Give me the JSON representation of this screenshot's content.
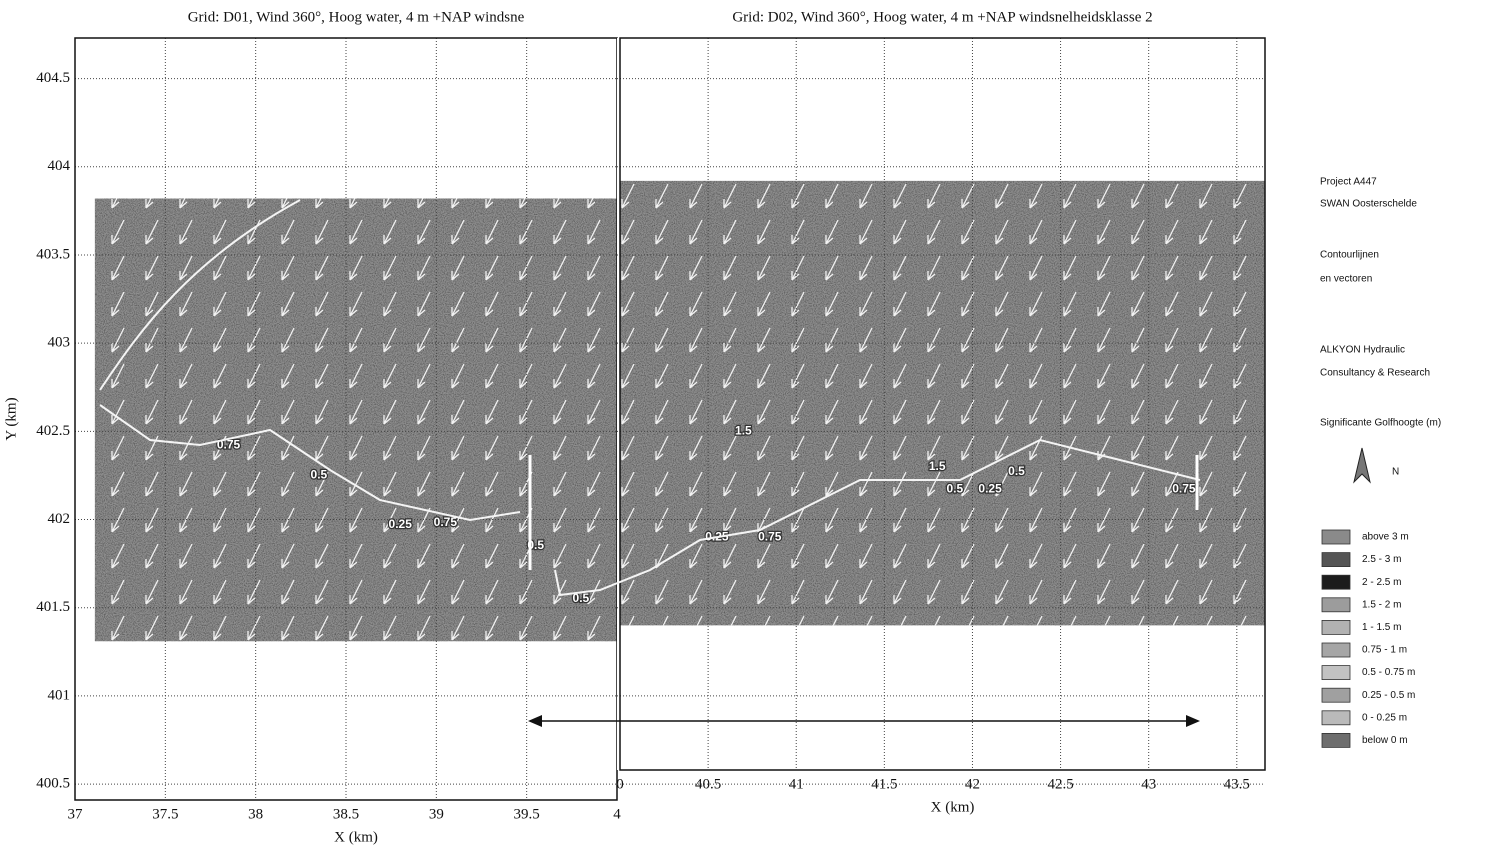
{
  "chart_data": [
    {
      "type": "map",
      "title": "Grid: D01, Wind 360°, Hoog water, 4 m +NAP windsne",
      "x_label": "X (km)",
      "y_label": "Y (km)",
      "xlim": [
        37,
        40
      ],
      "ylim": [
        400.41,
        404.73
      ],
      "xticks": [
        37,
        37.5,
        38,
        38.5,
        39,
        39.5,
        {
          "value": 40,
          "label": "4"
        }
      ],
      "yticks": [
        400.5,
        401,
        401.5,
        402,
        402.5,
        403,
        403.5,
        404,
        404.5
      ],
      "show_ytick_labels": true,
      "grid": true,
      "domain": {
        "x": [
          37.11,
          40
        ],
        "y": [
          401.31,
          403.82
        ],
        "color": "#8e8e8e"
      },
      "annotations": [
        {
          "text": "0.75",
          "x": 37.85,
          "y": 402.42
        },
        {
          "text": "0.5",
          "x": 38.35,
          "y": 402.25
        },
        {
          "text": "0.25",
          "x": 38.8,
          "y": 401.97
        },
        {
          "text": "0.75",
          "x": 39.05,
          "y": 401.98
        },
        {
          "text": "0.5",
          "x": 39.55,
          "y": 401.85
        },
        {
          "text": "0.5",
          "x": 39.8,
          "y": 401.55
        }
      ]
    },
    {
      "type": "map",
      "title": "Grid: D02, Wind 360°, Hoog water, 4 m +NAP windsnelheidsklasse 2",
      "x_label": "X (km)",
      "xlim": [
        40,
        43.66
      ],
      "ylim": [
        400.58,
        404.73
      ],
      "xticks": [
        {
          "value": 40,
          "label": "0"
        },
        40.5,
        41,
        41.5,
        42,
        42.5,
        43,
        43.5
      ],
      "yticks": [
        400.5,
        401,
        401.5,
        402,
        402.5,
        403,
        403.5,
        404,
        404.5
      ],
      "show_ytick_labels": false,
      "grid": true,
      "domain": {
        "x": [
          40,
          43.66
        ],
        "y": [
          401.4,
          403.92
        ],
        "color": "#8e8e8e"
      },
      "annotations": [
        {
          "text": "0.25",
          "x": 40.55,
          "y": 401.9
        },
        {
          "text": "0.75",
          "x": 40.85,
          "y": 401.9
        },
        {
          "text": "1.5",
          "x": 40.7,
          "y": 402.5
        },
        {
          "text": "1.5",
          "x": 41.8,
          "y": 402.3
        },
        {
          "text": "0.5",
          "x": 41.9,
          "y": 402.17
        },
        {
          "text": "0.25",
          "x": 42.1,
          "y": 402.17
        },
        {
          "text": "0.5",
          "x": 42.25,
          "y": 402.27
        },
        {
          "text": "0.75",
          "x": 43.2,
          "y": 402.17
        }
      ]
    }
  ],
  "legend": {
    "notes": [
      "Project A447",
      "SWAN Oosterschelde",
      "Contourlijnen",
      "en vectoren",
      "ALKYON Hydraulic",
      "Consultancy & Research"
    ],
    "title": "Significante Golfhoogte (m)",
    "north": "N",
    "items": [
      {
        "label": "above 3 m",
        "color": "#8a8a8a"
      },
      {
        "label": "2.5 - 3 m",
        "color": "#555555"
      },
      {
        "label": "2 - 2.5 m",
        "color": "#1c1c1c"
      },
      {
        "label": "1.5 - 2 m",
        "color": "#9c9c9c"
      },
      {
        "label": "1 - 1.5 m",
        "color": "#b2b2b2"
      },
      {
        "label": "0.75 - 1 m",
        "color": "#a6a6a6"
      },
      {
        "label": "0.5 - 0.75 m",
        "color": "#c2c2c2"
      },
      {
        "label": "0.25 - 0.5 m",
        "color": "#a0a0a0"
      },
      {
        "label": "0 - 0.25 m",
        "color": "#bababa"
      },
      {
        "label": "below 0 m",
        "color": "#6e6e6e"
      }
    ]
  }
}
